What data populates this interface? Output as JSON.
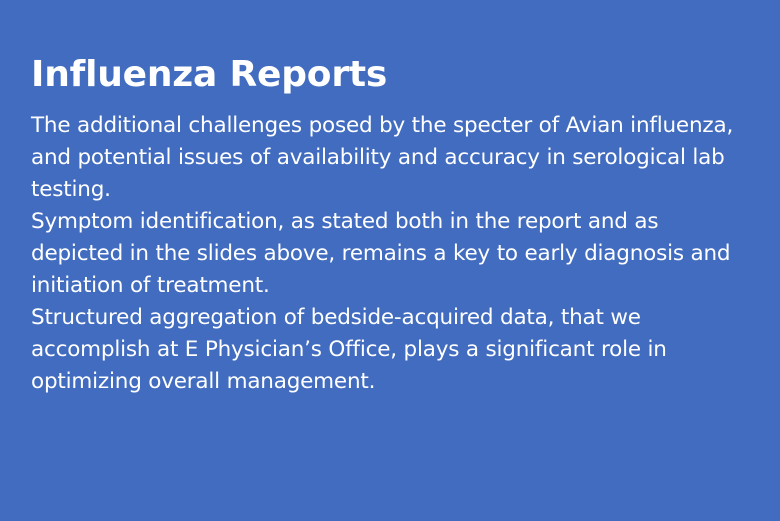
{
  "card": {
    "title": "Influenza Reports",
    "paragraphs": [
      "The additional challenges posed by the specter of Avian influenza, and potential issues of availability and accuracy in serological lab testing.",
      "Symptom identification, as stated both in the report and as depicted in the slides above, remains a key to early diagnosis and initiation of treatment.",
      "Structured aggregation of bedside-acquired data, that we accomplish at E Physician’s Office, plays a significant role in optimizing overall management."
    ]
  },
  "colors": {
    "background": "#416cbf",
    "text": "#ffffff"
  }
}
